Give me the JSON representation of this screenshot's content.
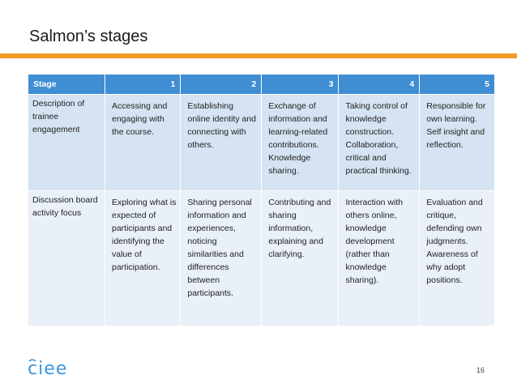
{
  "title": "Salmon’s stages",
  "table": {
    "headers": [
      "Stage",
      "1",
      "2",
      "3",
      "4",
      "5"
    ],
    "rows": [
      {
        "label": "Description of trainee engagement",
        "cells": [
          "Accessing and engaging with the course.",
          "Establishing online identity and connecting with others.",
          "Exchange of information and learning-related contributions. Knowledge sharing.",
          "Taking control of knowledge construction. Collaboration, critical and practical thinking.",
          "Responsible for own learning. Self insight and reflection."
        ]
      },
      {
        "label": "Discussion board activity focus",
        "cells": [
          "Exploring what is expected of participants and identifying the value of participation.",
          "Sharing personal information and experiences, noticing similarities and differences between participants.",
          "Contributing and sharing information, explaining and clarifying.",
          "Interaction with others online, knowledge development (rather than knowledge sharing).",
          "Evaluation and critique, defending own judgments. Awareness of why adopt positions."
        ]
      }
    ]
  },
  "logo_text": "ciee",
  "page_number": "16",
  "colors": {
    "accent_bar": "#f39a24",
    "header_bg": "#3f8ed3",
    "logo": "#3e95d8"
  }
}
